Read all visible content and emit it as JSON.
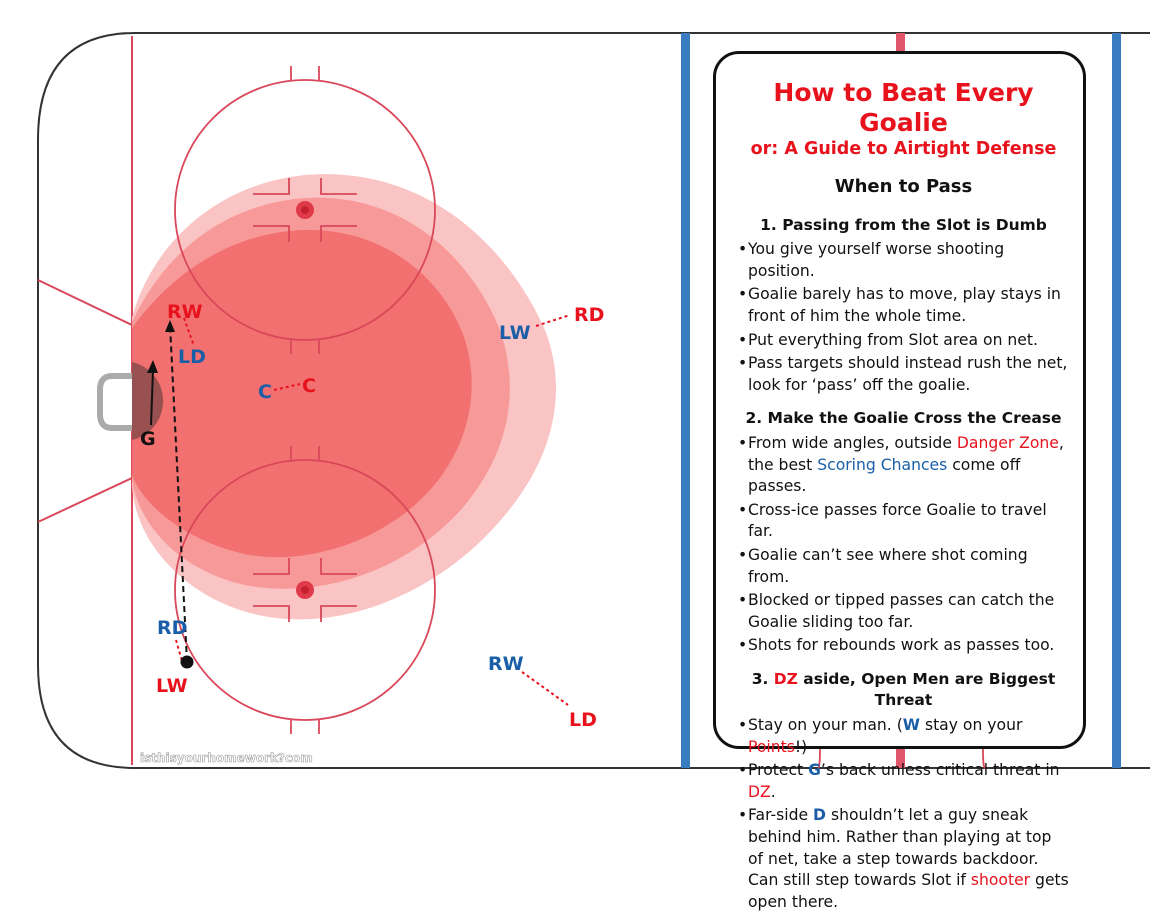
{
  "panel": {
    "title": "How to Beat Every Goalie",
    "subtitle": "or: A Guide to Airtight Defense",
    "heading": "When to Pass",
    "section1": {
      "heading": "1. Passing from the Slot is Dumb",
      "bullets": [
        "You give yourself worse shooting position.",
        "Goalie barely has to move, play stays in front of him the whole time.",
        "Put everything from Slot area on net.",
        "Pass targets should instead rush the net, look for ‘pass’ off the goalie."
      ]
    },
    "section2": {
      "heading": "2. Make the Goalie Cross the Crease",
      "b1_pre": "From wide angles, outside ",
      "b1_danger": "Danger Zone",
      "b1_mid": ", the best ",
      "b1_scoring": "Scoring Chances",
      "b1_post": " come off passes.",
      "bullets": [
        "Cross-ice passes force Goalie to travel far.",
        "Goalie can’t see where shot coming from.",
        "Blocked or tipped passes can catch the Goalie sliding too far.",
        "Shots for rebounds work as passes too."
      ]
    },
    "section3": {
      "heading_num": "3. ",
      "heading_dz": "DZ",
      "heading_rest": " aside, Open Men are Biggest Threat",
      "b1_pre": "Stay on your man. (",
      "b1_w": "W",
      "b1_mid": " stay on your ",
      "b1_points": "Points",
      "b1_post": "!)",
      "b2_pre": "Protect ",
      "b2_g": "G",
      "b2_mid": "’s back unless critical threat in ",
      "b2_dz": "DZ",
      "b2_post": ".",
      "b3_pre": "Far-side ",
      "b3_d": "D",
      "b3_mid": " shouldn’t let a guy sneak behind him. Rather than playing at top of net, take a step towards backdoor. Can still step towards Slot if ",
      "b3_shooter": "shooter",
      "b3_post": " gets open there."
    }
  },
  "players": {
    "red_rw": "RW",
    "blue_ld": "LD",
    "red_rd": "RD",
    "blue_lw": "LW",
    "blue_c": "C",
    "red_c": "C",
    "goalie": "G",
    "blue_rd": "RD",
    "red_lw": "LW",
    "blue_rw": "RW",
    "red_ld": "LD"
  },
  "watermark": "isthisyourhomework?com",
  "colors": {
    "red_team": "#e8121d",
    "blue_team": "#1a5ea8",
    "rink_line": "#d9485a",
    "blue_line": "#3a7cc0",
    "danger_zone": "#f26a6a"
  }
}
